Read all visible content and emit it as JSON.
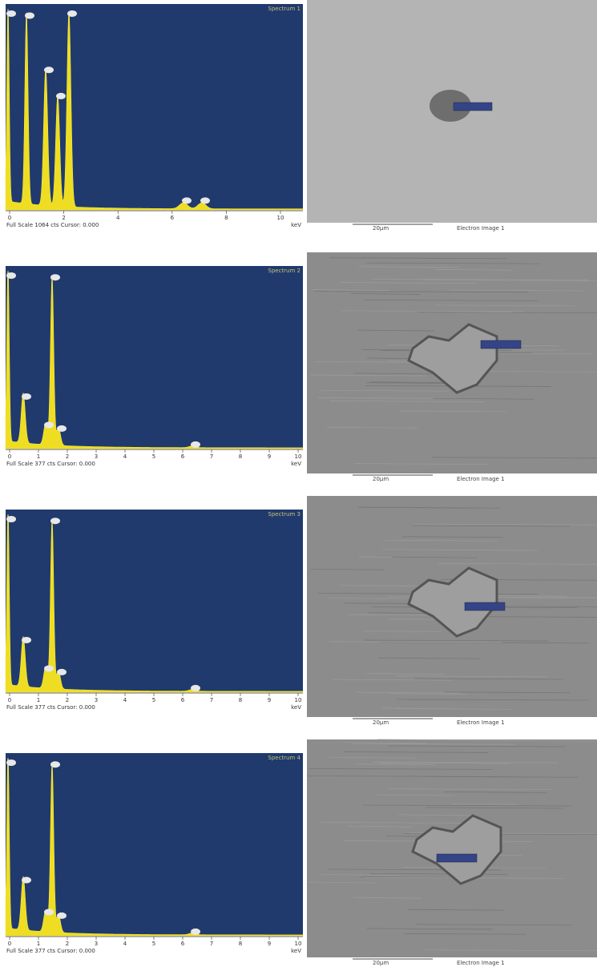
{
  "panels": [
    {
      "spectrum": {
        "title": "Spectrum 1",
        "ticks": [
          0,
          2,
          4,
          6,
          8,
          10
        ],
        "unit": "keV",
        "footer": "Full Scale 1064 cts Cursor: 0.000"
      },
      "image": {
        "scale": "20µm",
        "caption": "Electron Image 1"
      }
    },
    {
      "spectrum": {
        "title": "Spectrum 2",
        "ticks": [
          0,
          1,
          2,
          3,
          4,
          5,
          6,
          7,
          8,
          9,
          10
        ],
        "unit": "keV",
        "footer": "Full Scale 377 cts Cursor: 0.000"
      },
      "image": {
        "scale": "20µm",
        "caption": "Electron Image 1"
      }
    },
    {
      "spectrum": {
        "title": "Spectrum 3",
        "ticks": [
          0,
          1,
          2,
          3,
          4,
          5,
          6,
          7,
          8,
          9,
          10
        ],
        "unit": "keV",
        "footer": "Full Scale 377 cts Cursor: 0.000"
      },
      "image": {
        "scale": "20µm",
        "caption": "Electron Image 1"
      }
    },
    {
      "spectrum": {
        "title": "Spectrum 4",
        "ticks": [
          0,
          1,
          2,
          3,
          4,
          5,
          6,
          7,
          8,
          9,
          10
        ],
        "unit": "keV",
        "footer": "Full Scale 377 cts Cursor: 0.000"
      },
      "image": {
        "scale": "20µm",
        "caption": "Electron Image 1"
      }
    }
  ]
}
